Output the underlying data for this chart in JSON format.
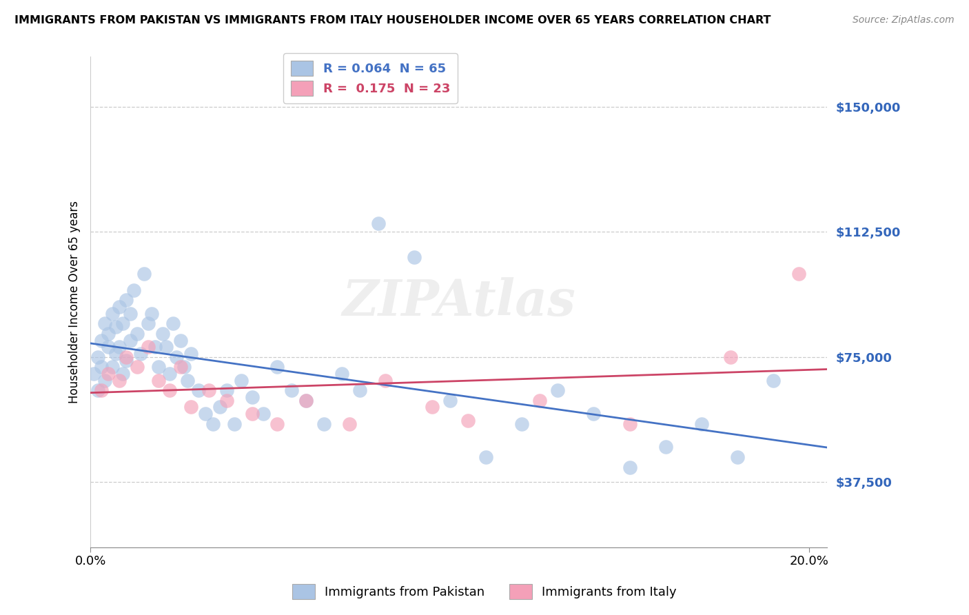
{
  "title": "IMMIGRANTS FROM PAKISTAN VS IMMIGRANTS FROM ITALY HOUSEHOLDER INCOME OVER 65 YEARS CORRELATION CHART",
  "source": "Source: ZipAtlas.com",
  "ylabel": "Householder Income Over 65 years",
  "xlim": [
    0.0,
    0.205
  ],
  "ylim": [
    18000,
    165000
  ],
  "ytick_values": [
    37500,
    75000,
    112500,
    150000
  ],
  "ytick_labels": [
    "$37,500",
    "$75,000",
    "$112,500",
    "$150,000"
  ],
  "grid_color": "#cccccc",
  "background_color": "#ffffff",
  "pakistan_color": "#aac4e4",
  "italy_color": "#f4a0b8",
  "pakistan_trend_color": "#4472C4",
  "italy_trend_color": "#cc4466",
  "pakistan_R": 0.064,
  "pakistan_N": 65,
  "italy_R": 0.175,
  "italy_N": 23,
  "watermark": "ZIPAtlas",
  "legend_labels": [
    "Immigrants from Pakistan",
    "Immigrants from Italy"
  ],
  "pakistan_x": [
    0.001,
    0.002,
    0.002,
    0.003,
    0.003,
    0.004,
    0.004,
    0.005,
    0.005,
    0.006,
    0.006,
    0.007,
    0.007,
    0.008,
    0.008,
    0.009,
    0.009,
    0.01,
    0.01,
    0.011,
    0.011,
    0.012,
    0.013,
    0.014,
    0.015,
    0.016,
    0.017,
    0.018,
    0.019,
    0.02,
    0.021,
    0.022,
    0.023,
    0.024,
    0.025,
    0.026,
    0.027,
    0.028,
    0.03,
    0.032,
    0.034,
    0.036,
    0.038,
    0.04,
    0.042,
    0.045,
    0.048,
    0.052,
    0.056,
    0.06,
    0.065,
    0.07,
    0.075,
    0.08,
    0.09,
    0.1,
    0.11,
    0.12,
    0.13,
    0.14,
    0.15,
    0.16,
    0.17,
    0.18,
    0.19
  ],
  "pakistan_y": [
    70000,
    75000,
    65000,
    80000,
    72000,
    85000,
    68000,
    78000,
    82000,
    88000,
    72000,
    76000,
    84000,
    90000,
    78000,
    70000,
    85000,
    92000,
    74000,
    88000,
    80000,
    95000,
    82000,
    76000,
    100000,
    85000,
    88000,
    78000,
    72000,
    82000,
    78000,
    70000,
    85000,
    75000,
    80000,
    72000,
    68000,
    76000,
    65000,
    58000,
    55000,
    60000,
    65000,
    55000,
    68000,
    63000,
    58000,
    72000,
    65000,
    62000,
    55000,
    70000,
    65000,
    115000,
    105000,
    62000,
    45000,
    55000,
    65000,
    58000,
    42000,
    48000,
    55000,
    45000,
    68000
  ],
  "italy_x": [
    0.003,
    0.005,
    0.008,
    0.01,
    0.013,
    0.016,
    0.019,
    0.022,
    0.025,
    0.028,
    0.033,
    0.038,
    0.045,
    0.052,
    0.06,
    0.072,
    0.082,
    0.095,
    0.105,
    0.125,
    0.15,
    0.178,
    0.197
  ],
  "italy_y": [
    65000,
    70000,
    68000,
    75000,
    72000,
    78000,
    68000,
    65000,
    72000,
    60000,
    65000,
    62000,
    58000,
    55000,
    62000,
    55000,
    68000,
    60000,
    56000,
    62000,
    55000,
    75000,
    100000
  ]
}
